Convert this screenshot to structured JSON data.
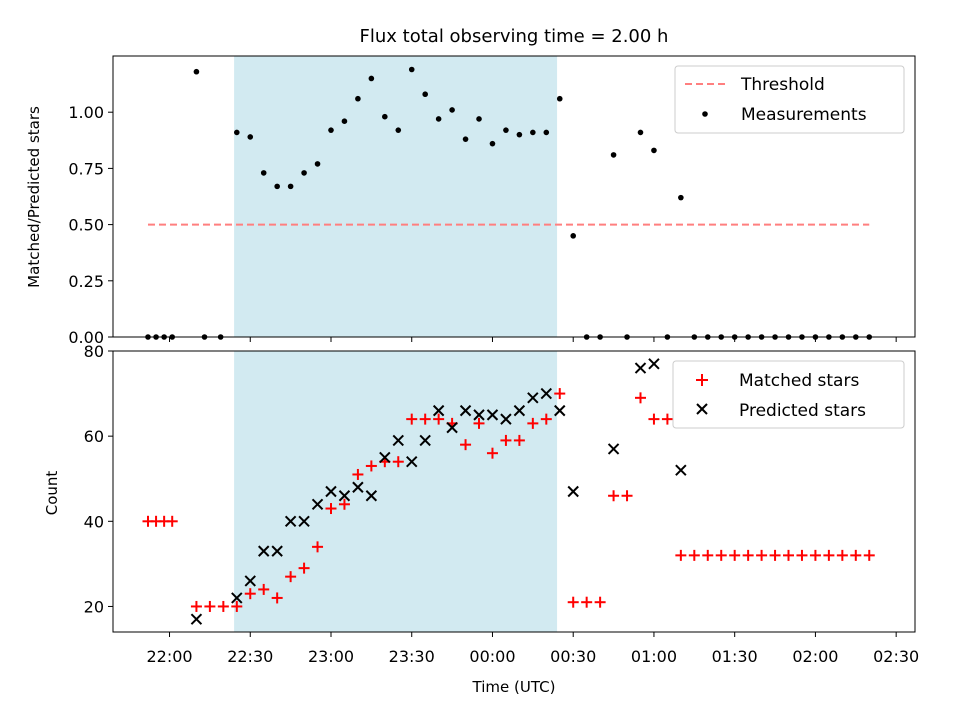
{
  "chart_data": [
    {
      "type": "scatter",
      "title": "Flux total observing time = 2.00 h",
      "xlabel": "",
      "ylabel": "Matched/Predicted stars",
      "xlim": [
        "21:39",
        "02:37"
      ],
      "ylim": [
        0.0,
        1.25
      ],
      "yticks": [
        0.0,
        0.25,
        0.5,
        0.75,
        1.0
      ],
      "ytick_labels": [
        "0.00",
        "0.25",
        "0.50",
        "0.75",
        "1.00"
      ],
      "shaded_span": [
        "22:24",
        "00:24"
      ],
      "shaded_color": "#add8e6",
      "legend_position": "upper right",
      "threshold": {
        "name": "Threshold",
        "y": 0.5,
        "x_start": "21:52",
        "x_end": "02:20",
        "color": "#ff7f7f",
        "style": "dashed"
      },
      "series": [
        {
          "name": "Measurements",
          "marker": "dot",
          "color": "#000000",
          "points": [
            [
              "21:52",
              0.0
            ],
            [
              "21:55",
              0.0
            ],
            [
              "21:58",
              0.0
            ],
            [
              "22:01",
              0.0
            ],
            [
              "22:10",
              1.18
            ],
            [
              "22:13",
              0.0
            ],
            [
              "22:19",
              0.0
            ],
            [
              "22:25",
              0.91
            ],
            [
              "22:30",
              0.89
            ],
            [
              "22:35",
              0.73
            ],
            [
              "22:40",
              0.67
            ],
            [
              "22:45",
              0.67
            ],
            [
              "22:50",
              0.73
            ],
            [
              "22:55",
              0.77
            ],
            [
              "23:00",
              0.92
            ],
            [
              "23:05",
              0.96
            ],
            [
              "23:10",
              1.06
            ],
            [
              "23:15",
              1.15
            ],
            [
              "23:20",
              0.98
            ],
            [
              "23:25",
              0.92
            ],
            [
              "23:30",
              1.19
            ],
            [
              "23:35",
              1.08
            ],
            [
              "23:40",
              0.97
            ],
            [
              "23:45",
              1.01
            ],
            [
              "23:50",
              0.88
            ],
            [
              "23:55",
              0.97
            ],
            [
              "00:00",
              0.86
            ],
            [
              "00:05",
              0.92
            ],
            [
              "00:10",
              0.9
            ],
            [
              "00:15",
              0.91
            ],
            [
              "00:20",
              0.91
            ],
            [
              "00:25",
              1.06
            ],
            [
              "00:30",
              0.45
            ],
            [
              "00:35",
              0.0
            ],
            [
              "00:40",
              0.0
            ],
            [
              "00:45",
              0.81
            ],
            [
              "00:50",
              0.0
            ],
            [
              "00:55",
              0.91
            ],
            [
              "01:00",
              0.83
            ],
            [
              "01:05",
              0.0
            ],
            [
              "01:10",
              0.62
            ],
            [
              "01:15",
              0.0
            ],
            [
              "01:20",
              0.0
            ],
            [
              "01:25",
              0.0
            ],
            [
              "01:30",
              0.0
            ],
            [
              "01:35",
              0.0
            ],
            [
              "01:40",
              0.0
            ],
            [
              "01:45",
              0.0
            ],
            [
              "01:50",
              0.0
            ],
            [
              "01:55",
              0.0
            ],
            [
              "02:00",
              0.0
            ],
            [
              "02:05",
              0.0
            ],
            [
              "02:10",
              0.0
            ],
            [
              "02:15",
              0.0
            ],
            [
              "02:20",
              0.0
            ]
          ]
        }
      ]
    },
    {
      "type": "scatter",
      "title": "",
      "xlabel": "Time (UTC)",
      "ylabel": "Count",
      "xlim": [
        "21:39",
        "02:37"
      ],
      "ylim": [
        14,
        80
      ],
      "yticks": [
        20,
        40,
        60,
        80
      ],
      "ytick_labels": [
        "20",
        "40",
        "60",
        "80"
      ],
      "xticks": [
        "22:00",
        "22:30",
        "23:00",
        "23:30",
        "00:00",
        "00:30",
        "01:00",
        "01:30",
        "02:00",
        "02:30"
      ],
      "xtick_labels": [
        "22:00",
        "22:30",
        "23:00",
        "23:30",
        "00:00",
        "00:30",
        "01:00",
        "01:30",
        "02:00",
        "02:30"
      ],
      "shaded_span": [
        "22:24",
        "00:24"
      ],
      "shaded_color": "#add8e6",
      "legend_position": "upper right",
      "series": [
        {
          "name": "Matched stars",
          "marker": "plus",
          "color": "#ff0000",
          "points": [
            [
              "21:52",
              40
            ],
            [
              "21:55",
              40
            ],
            [
              "21:58",
              40
            ],
            [
              "22:01",
              40
            ],
            [
              "22:10",
              20
            ],
            [
              "22:15",
              20
            ],
            [
              "22:20",
              20
            ],
            [
              "22:25",
              20
            ],
            [
              "22:30",
              23
            ],
            [
              "22:35",
              24
            ],
            [
              "22:40",
              22
            ],
            [
              "22:45",
              27
            ],
            [
              "22:50",
              29
            ],
            [
              "22:55",
              34
            ],
            [
              "23:00",
              43
            ],
            [
              "23:05",
              44
            ],
            [
              "23:10",
              51
            ],
            [
              "23:15",
              53
            ],
            [
              "23:20",
              54
            ],
            [
              "23:25",
              54
            ],
            [
              "23:30",
              64
            ],
            [
              "23:35",
              64
            ],
            [
              "23:40",
              64
            ],
            [
              "23:45",
              63
            ],
            [
              "23:50",
              58
            ],
            [
              "23:55",
              63
            ],
            [
              "00:00",
              56
            ],
            [
              "00:05",
              59
            ],
            [
              "00:10",
              59
            ],
            [
              "00:15",
              63
            ],
            [
              "00:20",
              64
            ],
            [
              "00:25",
              70
            ],
            [
              "00:30",
              21
            ],
            [
              "00:35",
              21
            ],
            [
              "00:40",
              21
            ],
            [
              "00:45",
              46
            ],
            [
              "00:50",
              46
            ],
            [
              "00:55",
              69
            ],
            [
              "01:00",
              64
            ],
            [
              "01:05",
              64
            ],
            [
              "01:10",
              32
            ],
            [
              "01:15",
              32
            ],
            [
              "01:20",
              32
            ],
            [
              "01:25",
              32
            ],
            [
              "01:30",
              32
            ],
            [
              "01:35",
              32
            ],
            [
              "01:40",
              32
            ],
            [
              "01:45",
              32
            ],
            [
              "01:50",
              32
            ],
            [
              "01:55",
              32
            ],
            [
              "02:00",
              32
            ],
            [
              "02:05",
              32
            ],
            [
              "02:10",
              32
            ],
            [
              "02:15",
              32
            ],
            [
              "02:20",
              32
            ]
          ]
        },
        {
          "name": "Predicted stars",
          "marker": "x",
          "color": "#000000",
          "points": [
            [
              "22:10",
              17
            ],
            [
              "22:25",
              22
            ],
            [
              "22:30",
              26
            ],
            [
              "22:35",
              33
            ],
            [
              "22:40",
              33
            ],
            [
              "22:45",
              40
            ],
            [
              "22:50",
              40
            ],
            [
              "22:55",
              44
            ],
            [
              "23:00",
              47
            ],
            [
              "23:05",
              46
            ],
            [
              "23:10",
              48
            ],
            [
              "23:15",
              46
            ],
            [
              "23:20",
              55
            ],
            [
              "23:25",
              59
            ],
            [
              "23:30",
              54
            ],
            [
              "23:35",
              59
            ],
            [
              "23:40",
              66
            ],
            [
              "23:45",
              62
            ],
            [
              "23:50",
              66
            ],
            [
              "23:55",
              65
            ],
            [
              "00:00",
              65
            ],
            [
              "00:05",
              64
            ],
            [
              "00:10",
              66
            ],
            [
              "00:15",
              69
            ],
            [
              "00:20",
              70
            ],
            [
              "00:25",
              66
            ],
            [
              "00:30",
              47
            ],
            [
              "00:45",
              57
            ],
            [
              "00:55",
              76
            ],
            [
              "01:00",
              77
            ],
            [
              "01:10",
              52
            ]
          ]
        }
      ]
    }
  ]
}
